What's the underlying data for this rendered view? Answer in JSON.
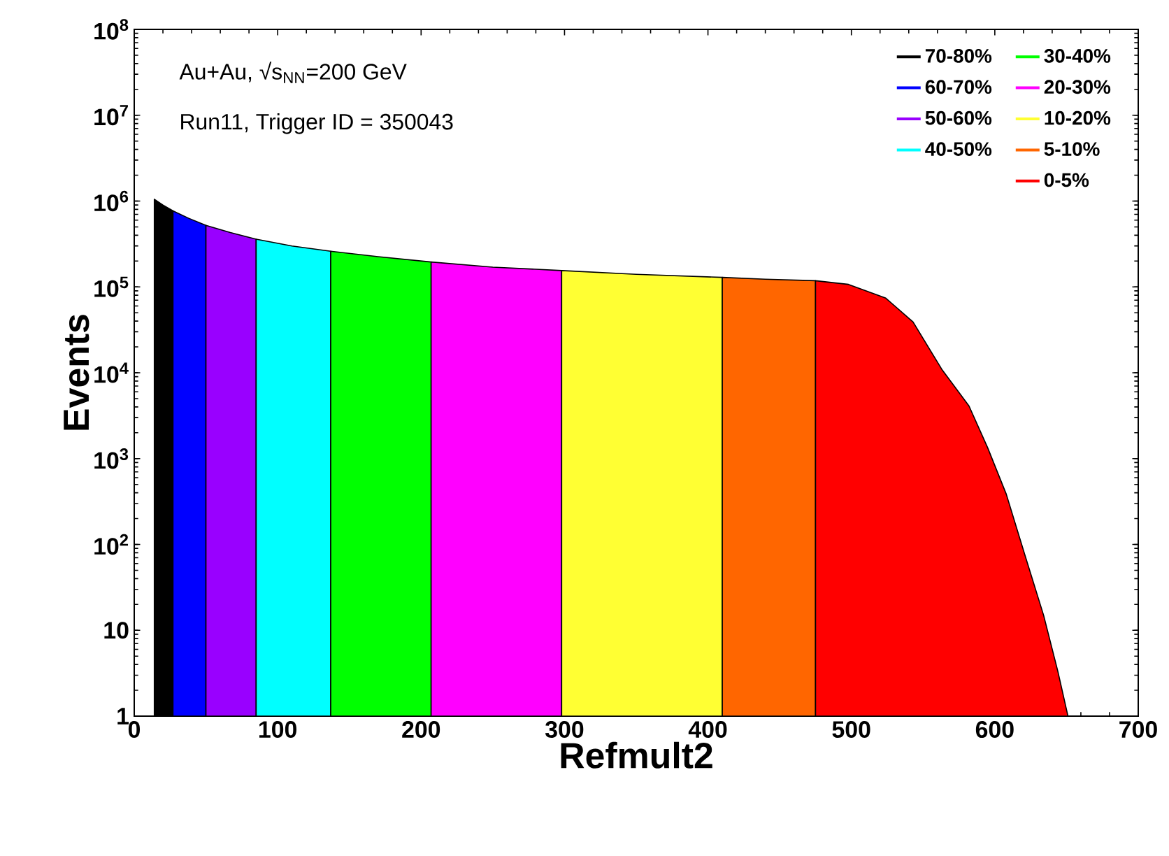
{
  "chart_data": {
    "type": "area",
    "xlabel": "Refmult2",
    "ylabel": "Events",
    "log": "y",
    "legend": "top right",
    "xlim": [
      0,
      700
    ],
    "xticks": [
      0,
      100,
      200,
      300,
      400,
      500,
      600,
      700
    ],
    "ylim": [
      1,
      100000000
    ],
    "yticks": [
      1,
      10,
      {
        "value": 100,
        "label": "10$^{2}$"
      },
      {
        "value": 1000,
        "label": "10$^{3}$"
      },
      {
        "value": 10000,
        "label": "10$^{4}$"
      },
      {
        "value": 100000,
        "label": "10$^{5}$"
      },
      {
        "value": 1000000,
        "label": "10$^{6}$"
      },
      {
        "value": 10000000,
        "label": "10$^{7}$"
      },
      {
        "value": 100000000,
        "label": "10$^{8}$"
      }
    ],
    "annotations": [
      "Au+Au, √s$_{NN}$=200 GeV",
      "Run11, Trigger ID = 350043"
    ],
    "series": [
      {
        "name": "70-80%",
        "color": "#000000",
        "x": [
          14,
          20,
          27
        ],
        "values": [
          1050000,
          900000,
          770000
        ]
      },
      {
        "name": "60-70%",
        "color": "#0000ff",
        "x": [
          27,
          38,
          50
        ],
        "values": [
          770000,
          630000,
          520000
        ]
      },
      {
        "name": "50-60%",
        "color": "#9900ff",
        "x": [
          50,
          67,
          85
        ],
        "values": [
          520000,
          430000,
          360000
        ]
      },
      {
        "name": "40-50%",
        "color": "#00ffff",
        "x": [
          85,
          110,
          137
        ],
        "values": [
          360000,
          300000,
          260000
        ]
      },
      {
        "name": "30-40%",
        "color": "#00ff00",
        "x": [
          137,
          170,
          207
        ],
        "values": [
          260000,
          225000,
          195000
        ]
      },
      {
        "name": "20-30%",
        "color": "#ff00ff",
        "x": [
          207,
          250,
          298
        ],
        "values": [
          195000,
          170000,
          155000
        ]
      },
      {
        "name": "10-20%",
        "color": "#ffff33",
        "x": [
          298,
          350,
          410
        ],
        "values": [
          155000,
          140000,
          129000
        ]
      },
      {
        "name": "5-10%",
        "color": "#ff6600",
        "x": [
          410,
          440,
          475
        ],
        "values": [
          129000,
          123000,
          118000
        ]
      },
      {
        "name": "0-5%",
        "color": "#ff0000",
        "x": [
          475,
          498,
          524,
          543,
          563,
          582,
          595,
          608,
          621,
          634,
          644,
          651
        ],
        "values": [
          118000,
          107000,
          74000,
          39000,
          11000,
          4100,
          1340,
          385,
          75,
          15,
          3.3,
          1
        ]
      }
    ]
  }
}
